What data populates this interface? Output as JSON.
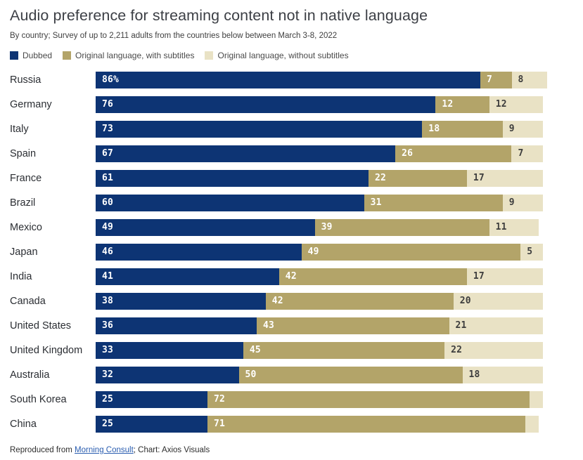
{
  "header": {
    "title": "Audio preference for streaming content not in native language",
    "subtitle": "By country; Survey of up to 2,211 adults from the countries below between March 3-8, 2022"
  },
  "chart_data": {
    "type": "bar",
    "orientation": "horizontal",
    "stacked": true,
    "unit": "percent",
    "grid": false,
    "legend_position": "top",
    "x_range": [
      0,
      101
    ],
    "categories": [
      "Russia",
      "Germany",
      "Italy",
      "Spain",
      "France",
      "Brazil",
      "Mexico",
      "Japan",
      "India",
      "Canada",
      "United States",
      "United Kingdom",
      "Australia",
      "South Korea",
      "China"
    ],
    "series": [
      {
        "name": "Dubbed",
        "color": "#0d3474",
        "label_color": "#ffffff",
        "values": [
          86,
          76,
          73,
          67,
          61,
          60,
          49,
          46,
          41,
          38,
          36,
          33,
          32,
          25,
          25
        ],
        "labels": [
          "86%",
          "76",
          "73",
          "67",
          "61",
          "60",
          "49",
          "46",
          "41",
          "38",
          "36",
          "33",
          "32",
          "25",
          "25"
        ]
      },
      {
        "name": "Original language, with subtitles",
        "color": "#b3a469",
        "label_color": "#ffffff",
        "values": [
          7,
          12,
          18,
          26,
          22,
          31,
          39,
          49,
          42,
          42,
          43,
          45,
          50,
          72,
          71
        ],
        "labels": [
          "7",
          "12",
          "18",
          "26",
          "22",
          "31",
          "39",
          "49",
          "42",
          "42",
          "43",
          "45",
          "50",
          "72",
          "71"
        ]
      },
      {
        "name": "Original language, without subtitles",
        "color": "#e9e2c5",
        "label_color": "#3d3d3d",
        "values": [
          8,
          12,
          9,
          7,
          17,
          9,
          11,
          5,
          17,
          20,
          21,
          22,
          18,
          3,
          3
        ],
        "labels": [
          "8",
          "12",
          "9",
          "7",
          "17",
          "9",
          "11",
          "5",
          "17",
          "20",
          "21",
          "22",
          "18",
          "",
          ""
        ]
      }
    ]
  },
  "footer": {
    "prefix": "Reproduced from ",
    "link_text": "Morning Consult",
    "suffix": "; Chart: Axios Visuals"
  }
}
